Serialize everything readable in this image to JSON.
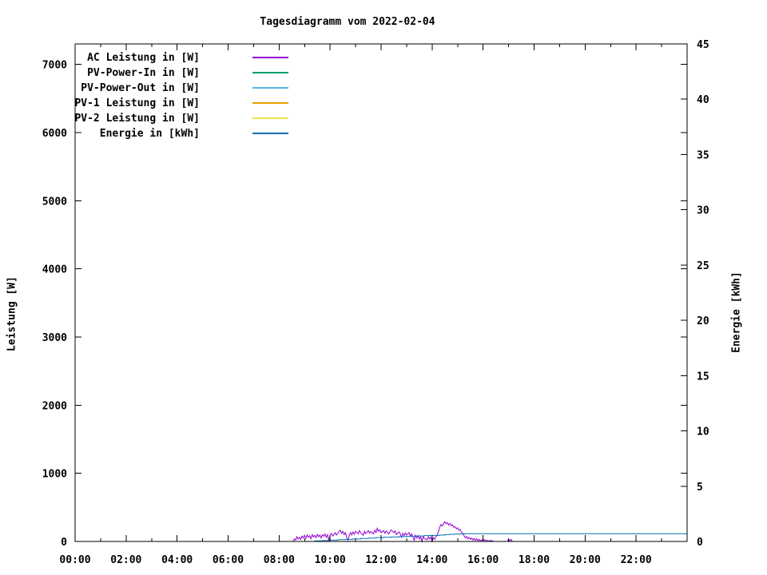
{
  "chart_data": {
    "type": "line",
    "title": "Tagesdiagramm vom 2022-02-04",
    "grid": false,
    "background_color": "#ffffff",
    "axis_color": "#000000",
    "legend_position": "top-left-inside",
    "x_axis": {
      "unit": "hour of day",
      "range_hours": [
        0,
        24
      ],
      "major_tick_hours": [
        0,
        2,
        4,
        6,
        8,
        10,
        12,
        14,
        16,
        18,
        20,
        22
      ],
      "major_tick_labels": [
        "00:00",
        "02:00",
        "04:00",
        "06:00",
        "08:00",
        "10:00",
        "12:00",
        "14:00",
        "16:00",
        "18:00",
        "20:00",
        "22:00"
      ],
      "minor_tick_hours": [
        1,
        3,
        5,
        7,
        9,
        11,
        13,
        15,
        17,
        19,
        21,
        23
      ]
    },
    "left_axis": {
      "title": "Leistung [W]",
      "range": [
        0,
        7300
      ],
      "tick_values": [
        0,
        1000,
        2000,
        3000,
        4000,
        5000,
        6000,
        7000
      ],
      "tick_labels": [
        "0",
        "1000",
        "2000",
        "3000",
        "4000",
        "5000",
        "6000",
        "7000"
      ]
    },
    "right_axis": {
      "title": "Energie [kWh]",
      "range": [
        0,
        45
      ],
      "tick_values": [
        0,
        5,
        10,
        15,
        20,
        25,
        30,
        35,
        40,
        45
      ],
      "tick_labels": [
        "0",
        "5",
        "10",
        "15",
        "20",
        "25",
        "30",
        "35",
        "40",
        "45"
      ]
    },
    "series": [
      {
        "name": "AC Leistung in [W]",
        "color": "#9400D3",
        "axis": "left",
        "visible": true,
        "points": [
          [
            8.55,
            0
          ],
          [
            8.6,
            40
          ],
          [
            8.65,
            20
          ],
          [
            8.7,
            70
          ],
          [
            8.75,
            35
          ],
          [
            8.8,
            60
          ],
          [
            8.85,
            30
          ],
          [
            8.9,
            80
          ],
          [
            8.95,
            50
          ],
          [
            9.0,
            90
          ],
          [
            9.05,
            45
          ],
          [
            9.1,
            95
          ],
          [
            9.15,
            60
          ],
          [
            9.2,
            85
          ],
          [
            9.25,
            40
          ],
          [
            9.3,
            100
          ],
          [
            9.35,
            65
          ],
          [
            9.4,
            90
          ],
          [
            9.45,
            55
          ],
          [
            9.5,
            105
          ],
          [
            9.55,
            70
          ],
          [
            9.6,
            95
          ],
          [
            9.65,
            50
          ],
          [
            9.7,
            100
          ],
          [
            9.75,
            75
          ],
          [
            9.8,
            110
          ],
          [
            9.85,
            60
          ],
          [
            9.9,
            100
          ],
          [
            9.95,
            10
          ],
          [
            10.0,
            90
          ],
          [
            10.05,
            120
          ],
          [
            10.1,
            80
          ],
          [
            10.2,
            130
          ],
          [
            10.25,
            95
          ],
          [
            10.3,
            120
          ],
          [
            10.35,
            150
          ],
          [
            10.4,
            165
          ],
          [
            10.45,
            120
          ],
          [
            10.5,
            150
          ],
          [
            10.55,
            100
          ],
          [
            10.6,
            130
          ],
          [
            10.65,
            60
          ],
          [
            10.7,
            15
          ],
          [
            10.75,
            90
          ],
          [
            10.8,
            130
          ],
          [
            10.85,
            95
          ],
          [
            10.9,
            140
          ],
          [
            10.95,
            105
          ],
          [
            11.0,
            150
          ],
          [
            11.1,
            110
          ],
          [
            11.15,
            160
          ],
          [
            11.2,
            125
          ],
          [
            11.3,
            90
          ],
          [
            11.35,
            150
          ],
          [
            11.4,
            115
          ],
          [
            11.5,
            160
          ],
          [
            11.55,
            120
          ],
          [
            11.6,
            145
          ],
          [
            11.7,
            110
          ],
          [
            11.75,
            165
          ],
          [
            11.8,
            130
          ],
          [
            11.85,
            195
          ],
          [
            11.9,
            150
          ],
          [
            11.95,
            170
          ],
          [
            12.0,
            130
          ],
          [
            12.1,
            160
          ],
          [
            12.15,
            120
          ],
          [
            12.2,
            155
          ],
          [
            12.3,
            110
          ],
          [
            12.35,
            145
          ],
          [
            12.4,
            170
          ],
          [
            12.5,
            130
          ],
          [
            12.55,
            155
          ],
          [
            12.6,
            100
          ],
          [
            12.7,
            140
          ],
          [
            12.75,
            115
          ],
          [
            12.8,
            60
          ],
          [
            12.85,
            120
          ],
          [
            12.9,
            85
          ],
          [
            12.95,
            125
          ],
          [
            13.0,
            95
          ],
          [
            13.1,
            130
          ],
          [
            13.15,
            75
          ],
          [
            13.2,
            110
          ],
          [
            13.3,
            15
          ],
          [
            13.35,
            90
          ],
          [
            13.4,
            50
          ],
          [
            13.45,
            85
          ],
          [
            13.5,
            35
          ],
          [
            13.55,
            70
          ],
          [
            13.6,
            0
          ],
          [
            13.65,
            75
          ],
          [
            13.7,
            40
          ],
          [
            13.8,
            25
          ],
          [
            13.85,
            70
          ],
          [
            13.9,
            35
          ],
          [
            13.95,
            65
          ],
          [
            14.0,
            0
          ],
          [
            14.05,
            55
          ],
          [
            14.1,
            30
          ],
          [
            14.15,
            70
          ],
          [
            14.2,
            95
          ],
          [
            14.25,
            150
          ],
          [
            14.3,
            210
          ],
          [
            14.35,
            250
          ],
          [
            14.4,
            225
          ],
          [
            14.45,
            265
          ],
          [
            14.5,
            290
          ],
          [
            14.55,
            260
          ],
          [
            14.6,
            275
          ],
          [
            14.65,
            240
          ],
          [
            14.7,
            265
          ],
          [
            14.75,
            230
          ],
          [
            14.8,
            245
          ],
          [
            14.85,
            205
          ],
          [
            14.9,
            220
          ],
          [
            14.95,
            185
          ],
          [
            15.0,
            200
          ],
          [
            15.05,
            165
          ],
          [
            15.1,
            175
          ],
          [
            15.15,
            140
          ],
          [
            15.2,
            120
          ],
          [
            15.25,
            85
          ],
          [
            15.3,
            55
          ],
          [
            15.35,
            75
          ],
          [
            15.4,
            40
          ],
          [
            15.45,
            60
          ],
          [
            15.5,
            30
          ],
          [
            15.55,
            50
          ],
          [
            15.6,
            20
          ],
          [
            15.65,
            45
          ],
          [
            15.7,
            15
          ],
          [
            15.75,
            40
          ],
          [
            15.8,
            10
          ],
          [
            15.85,
            30
          ],
          [
            15.9,
            5
          ],
          [
            15.95,
            25
          ],
          [
            16.0,
            10
          ],
          [
            16.05,
            30
          ],
          [
            16.1,
            5
          ],
          [
            16.15,
            20
          ],
          [
            16.2,
            0
          ],
          [
            16.25,
            15
          ],
          [
            16.3,
            5
          ],
          [
            16.35,
            15
          ],
          [
            16.4,
            0
          ],
          [
            16.95,
            0
          ],
          [
            17.0,
            35
          ],
          [
            17.05,
            5
          ],
          [
            17.1,
            30
          ],
          [
            17.15,
            0
          ]
        ]
      },
      {
        "name": "PV-Power-In in [W]",
        "color": "#009E73",
        "axis": "left",
        "visible": false,
        "points": []
      },
      {
        "name": "PV-Power-Out in [W]",
        "color": "#56B4E9",
        "axis": "left",
        "visible": false,
        "points": []
      },
      {
        "name": "PV-1 Leistung in [W]",
        "color": "#E69F00",
        "axis": "left",
        "visible": false,
        "points": []
      },
      {
        "name": "PV-2 Leistung in [W]",
        "color": "#F0E442",
        "axis": "left",
        "visible": false,
        "points": []
      },
      {
        "name": "Energie in [kWh]",
        "color": "#0072B2",
        "axis": "right",
        "visible": true,
        "step": true,
        "points": [
          [
            0,
            0
          ],
          [
            9.2,
            0
          ],
          [
            9.4,
            0.05
          ],
          [
            9.7,
            0.08
          ],
          [
            10.0,
            0.12
          ],
          [
            10.3,
            0.16
          ],
          [
            10.6,
            0.19
          ],
          [
            10.9,
            0.23
          ],
          [
            11.2,
            0.27
          ],
          [
            11.5,
            0.31
          ],
          [
            11.8,
            0.35
          ],
          [
            12.1,
            0.38
          ],
          [
            12.4,
            0.41
          ],
          [
            12.7,
            0.44
          ],
          [
            13.0,
            0.47
          ],
          [
            13.3,
            0.5
          ],
          [
            13.7,
            0.53
          ],
          [
            14.0,
            0.55
          ],
          [
            14.3,
            0.58
          ],
          [
            14.5,
            0.62
          ],
          [
            14.7,
            0.65
          ],
          [
            14.9,
            0.67
          ],
          [
            15.1,
            0.69
          ],
          [
            15.3,
            0.7
          ],
          [
            24,
            0.7
          ]
        ]
      }
    ]
  }
}
